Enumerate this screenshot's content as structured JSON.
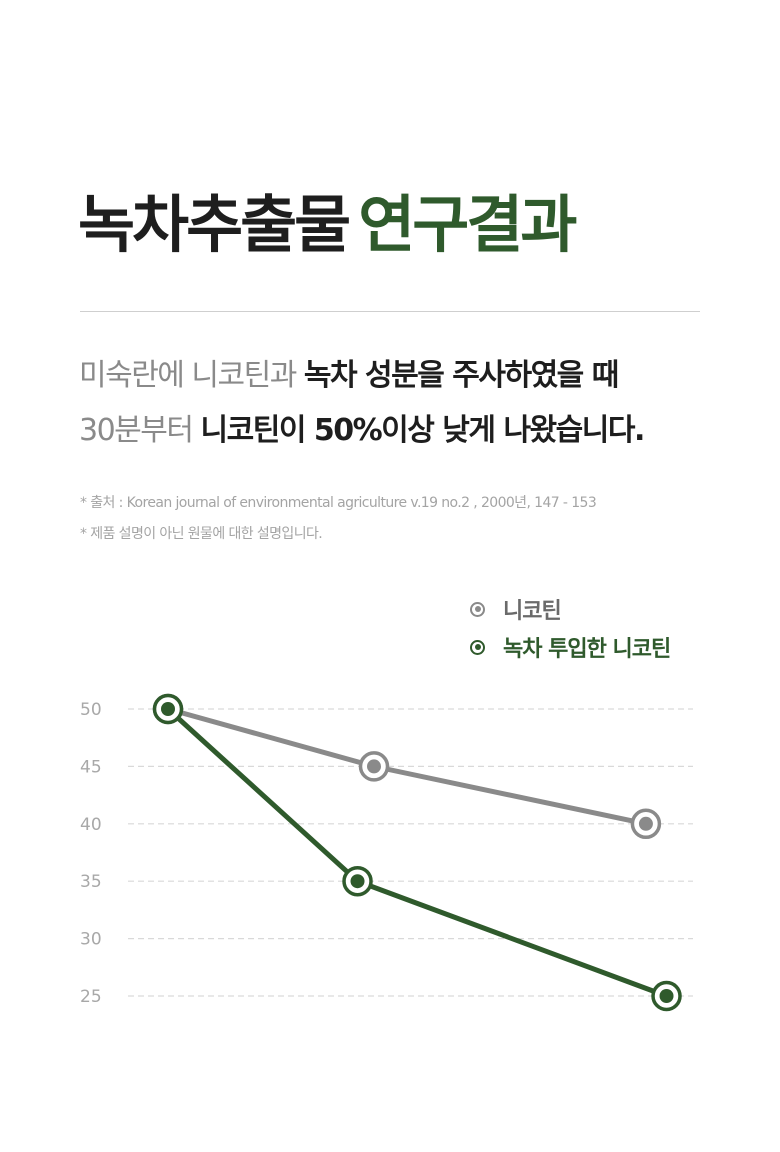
{
  "header": {
    "title_part1": "녹차추출물",
    "title_part2": "연구결과"
  },
  "description": {
    "line1_light": "미숙란에 니코틴과 ",
    "line1_bold": "녹차 성분을 주사하였을 때",
    "line2_light": "30분부터 ",
    "line2_bold": "니코틴이 50%이상 낮게 나왔습니다."
  },
  "notes": {
    "source": "* 출처 :  Korean journal of environmental agriculture v.19 no.2 , 2000년, 147 - 153",
    "disclaimer": "* 제품 설명이 아닌 원물에 대한 설명입니다."
  },
  "colors": {
    "green": "#2f5a2c",
    "gray": "#8a8a8a"
  },
  "chart_data": {
    "type": "line",
    "title": "",
    "xlabel": "",
    "ylabel": "",
    "ylim": [
      25,
      50
    ],
    "yticks": [
      50,
      45,
      40,
      35,
      30,
      25
    ],
    "grid": "dashed horizontal",
    "legend_position": "top-right",
    "series": [
      {
        "name": "니코틴",
        "color": "#8a8a8a",
        "points": [
          [
            0,
            50
          ],
          [
            1,
            45
          ],
          [
            2.32,
            40
          ]
        ]
      },
      {
        "name": "녹차 투입한 니코틴",
        "color": "#2f5a2c",
        "points": [
          [
            0,
            50
          ],
          [
            0.92,
            35
          ],
          [
            2.42,
            25
          ]
        ]
      }
    ]
  }
}
